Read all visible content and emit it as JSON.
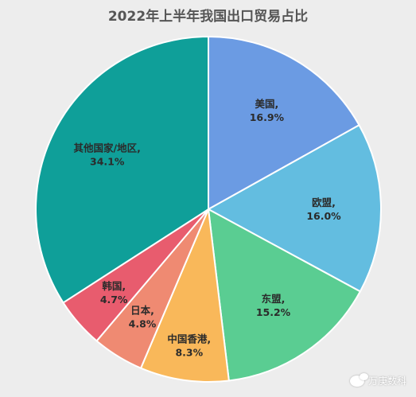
{
  "chart_data": {
    "type": "pie",
    "title": "2022年上半年我国出口贸易占比",
    "start_angle_deg": 0,
    "direction": "clockwise",
    "slices": [
      {
        "name": "美国",
        "value": 16.9,
        "label": "16.9%",
        "color": "#6b9be3"
      },
      {
        "name": "欧盟",
        "value": 16.0,
        "label": "16.0%",
        "color": "#63bde0"
      },
      {
        "name": "东盟",
        "value": 15.2,
        "label": "15.2%",
        "color": "#5acd92"
      },
      {
        "name": "中国香港",
        "value": 8.3,
        "label": "8.3%",
        "color": "#f9b85a"
      },
      {
        "name": "日本",
        "value": 4.8,
        "label": "4.8%",
        "color": "#ef8a72"
      },
      {
        "name": "韩国",
        "value": 4.7,
        "label": "4.7%",
        "color": "#e85c6e"
      },
      {
        "name": "其他国家/地区",
        "value": 34.1,
        "label": "34.1%",
        "color": "#0f9f99"
      }
    ],
    "legend": "none"
  },
  "watermark": {
    "text": "万庚数科",
    "icon": "wechat-icon"
  }
}
